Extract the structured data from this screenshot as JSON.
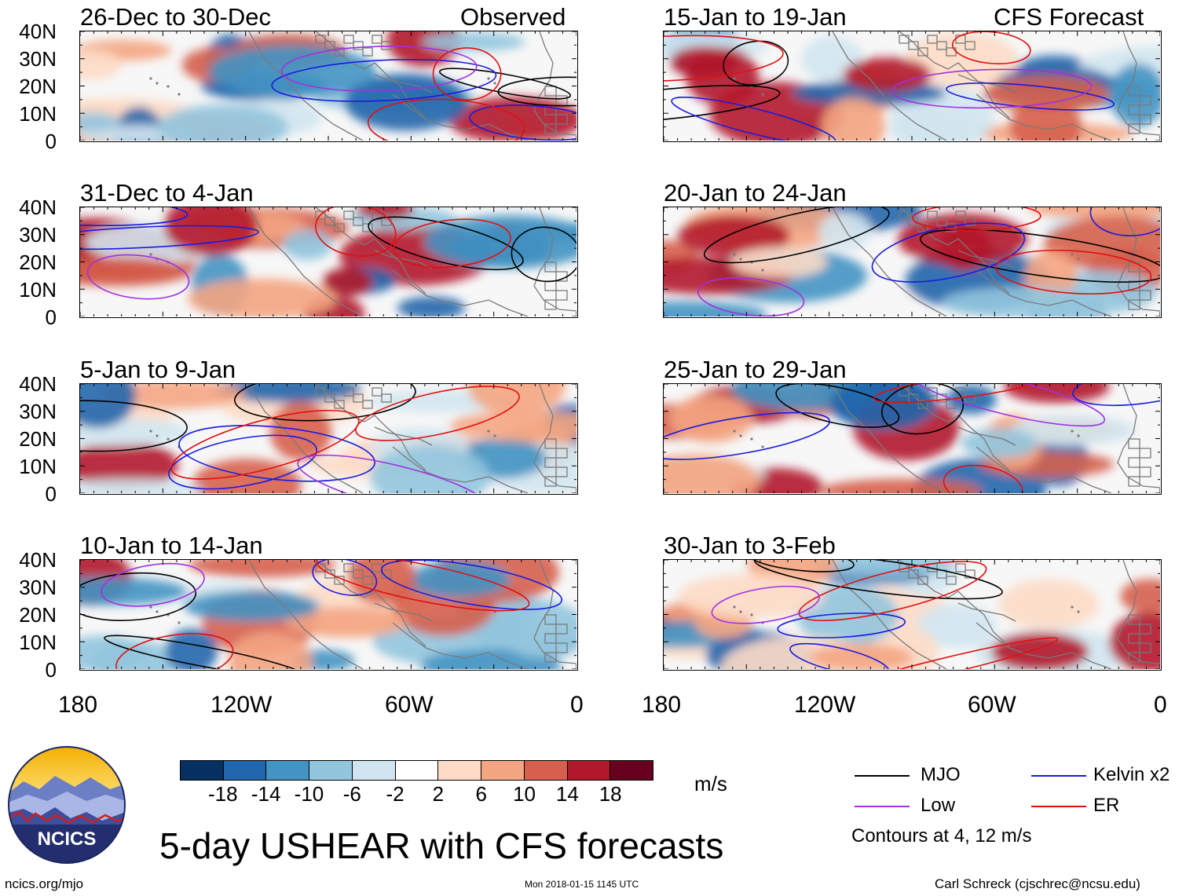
{
  "figure": {
    "title": "5-day USHEAR with CFS forecasts",
    "units": "m/s",
    "site": "ncics.org/mjo",
    "timestamp": "Mon 2018-01-15 1145 UTC",
    "credit": "Carl Schreck (cjschrec@ncsu.edu)",
    "logo_text": "NCICS",
    "contours_note": "Contours at 4, 12 m/s"
  },
  "legend": {
    "mjo": "MJO",
    "kelvin": "Kelvin x2",
    "low": "Low",
    "er": "ER"
  },
  "colors": {
    "mjo": "#000000",
    "kelvin": "#1a1adf",
    "low": "#a030e0",
    "er": "#e01010",
    "land": "#7a7a7a"
  },
  "chart_data": {
    "type": "heatmap",
    "variable": "USHEAR anomaly",
    "ylabel_ticks": [
      "40N",
      "30N",
      "20N",
      "10N",
      "0"
    ],
    "xlabel_ticks": [
      "180",
      "120W",
      "60W",
      "0"
    ],
    "ylim": [
      0,
      40
    ],
    "xlim": [
      -180,
      0
    ],
    "colorbar": {
      "ticks": [
        "-18",
        "-14",
        "-10",
        "-6",
        "-2",
        "2",
        "6",
        "10",
        "14",
        "18"
      ],
      "colors": [
        "#053061",
        "#2166ac",
        "#4393c3",
        "#92c5de",
        "#d1e5f0",
        "#ffffff",
        "#fddbc7",
        "#f4a582",
        "#d6604d",
        "#b2182b",
        "#67001f"
      ]
    },
    "panels": [
      {
        "id": "p1",
        "period": "26-Dec to 30-Dec",
        "label": "Observed"
      },
      {
        "id": "p2",
        "period": "31-Dec to 4-Jan",
        "label": ""
      },
      {
        "id": "p3",
        "period": "5-Jan to 9-Jan",
        "label": ""
      },
      {
        "id": "p4",
        "period": "10-Jan to 14-Jan",
        "label": ""
      },
      {
        "id": "p5",
        "period": "15-Jan to 19-Jan",
        "label": "CFS Forecast"
      },
      {
        "id": "p6",
        "period": "20-Jan to 24-Jan",
        "label": ""
      },
      {
        "id": "p7",
        "period": "25-Jan to 29-Jan",
        "label": ""
      },
      {
        "id": "p8",
        "period": "30-Jan to 3-Feb",
        "label": ""
      }
    ]
  }
}
